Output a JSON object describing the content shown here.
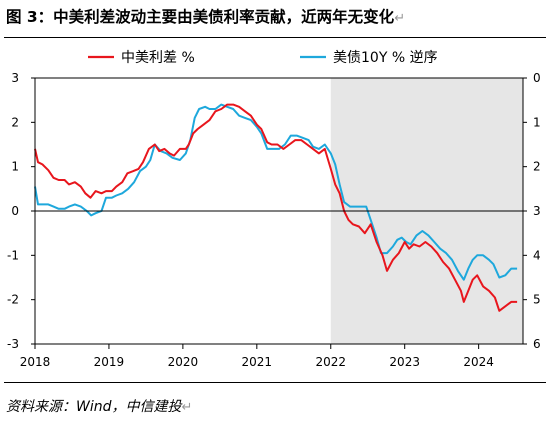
{
  "figure": {
    "title": "图 3：中美利差波动主要由美债利率贡献，近两年无变化",
    "title_end_mark": "↵",
    "source": "资料来源：Wind，中信建投",
    "source_end_mark": "↵"
  },
  "colors": {
    "spread": "#e8161d",
    "us_yield": "#1ea8dc",
    "shade": "#e6e6e6",
    "axis": "#000000"
  },
  "chart_data": {
    "type": "line",
    "legend_position": "top",
    "grid": false,
    "shaded_region": {
      "from": 2022.0,
      "to": 2024.6
    },
    "x_axis": {
      "range": [
        2018.0,
        2024.6
      ],
      "ticks": [
        2018,
        2019,
        2020,
        2021,
        2022,
        2023,
        2024
      ],
      "tick_labels": [
        "2018",
        "2019",
        "2020",
        "2021",
        "2022",
        "2023",
        "2024"
      ]
    },
    "y_left": {
      "range": [
        -3,
        3
      ],
      "ticks": [
        3,
        2,
        1,
        0,
        -1,
        -2,
        -3
      ],
      "tick_labels": [
        "3",
        "2",
        "1",
        "0",
        "-1",
        "-2",
        "-3"
      ]
    },
    "y_right": {
      "range": [
        0,
        6
      ],
      "inverted": true,
      "ticks": [
        0,
        1,
        2,
        3,
        4,
        5,
        6
      ],
      "tick_labels": [
        "0",
        "1",
        "2",
        "3",
        "4",
        "5",
        "6"
      ]
    },
    "series": [
      {
        "name": "中美利差 %",
        "axis": "left",
        "color_key": "spread",
        "points": [
          [
            2018.0,
            1.4
          ],
          [
            2018.04,
            1.1
          ],
          [
            2018.1,
            1.05
          ],
          [
            2018.18,
            0.92
          ],
          [
            2018.25,
            0.75
          ],
          [
            2018.32,
            0.7
          ],
          [
            2018.4,
            0.7
          ],
          [
            2018.46,
            0.6
          ],
          [
            2018.54,
            0.65
          ],
          [
            2018.62,
            0.55
          ],
          [
            2018.68,
            0.4
          ],
          [
            2018.75,
            0.3
          ],
          [
            2018.82,
            0.45
          ],
          [
            2018.9,
            0.4
          ],
          [
            2018.96,
            0.45
          ],
          [
            2019.04,
            0.45
          ],
          [
            2019.1,
            0.55
          ],
          [
            2019.18,
            0.65
          ],
          [
            2019.25,
            0.85
          ],
          [
            2019.33,
            0.9
          ],
          [
            2019.4,
            0.95
          ],
          [
            2019.46,
            1.1
          ],
          [
            2019.54,
            1.4
          ],
          [
            2019.62,
            1.5
          ],
          [
            2019.68,
            1.35
          ],
          [
            2019.75,
            1.4
          ],
          [
            2019.82,
            1.3
          ],
          [
            2019.88,
            1.25
          ],
          [
            2019.96,
            1.4
          ],
          [
            2020.04,
            1.4
          ],
          [
            2020.08,
            1.5
          ],
          [
            2020.14,
            1.75
          ],
          [
            2020.2,
            1.85
          ],
          [
            2020.28,
            1.95
          ],
          [
            2020.36,
            2.05
          ],
          [
            2020.44,
            2.25
          ],
          [
            2020.52,
            2.3
          ],
          [
            2020.6,
            2.4
          ],
          [
            2020.68,
            2.4
          ],
          [
            2020.76,
            2.35
          ],
          [
            2020.84,
            2.25
          ],
          [
            2020.92,
            2.15
          ],
          [
            2021.0,
            1.95
          ],
          [
            2021.06,
            1.85
          ],
          [
            2021.14,
            1.55
          ],
          [
            2021.2,
            1.5
          ],
          [
            2021.28,
            1.5
          ],
          [
            2021.36,
            1.4
          ],
          [
            2021.44,
            1.5
          ],
          [
            2021.52,
            1.6
          ],
          [
            2021.6,
            1.6
          ],
          [
            2021.68,
            1.5
          ],
          [
            2021.76,
            1.4
          ],
          [
            2021.84,
            1.3
          ],
          [
            2021.92,
            1.4
          ],
          [
            2022.0,
            0.95
          ],
          [
            2022.06,
            0.6
          ],
          [
            2022.12,
            0.4
          ],
          [
            2022.18,
            0.0
          ],
          [
            2022.24,
            -0.2
          ],
          [
            2022.3,
            -0.3
          ],
          [
            2022.38,
            -0.35
          ],
          [
            2022.46,
            -0.5
          ],
          [
            2022.54,
            -0.3
          ],
          [
            2022.62,
            -0.7
          ],
          [
            2022.7,
            -1.0
          ],
          [
            2022.76,
            -1.35
          ],
          [
            2022.84,
            -1.1
          ],
          [
            2022.92,
            -0.95
          ],
          [
            2023.0,
            -0.7
          ],
          [
            2023.06,
            -0.85
          ],
          [
            2023.12,
            -0.75
          ],
          [
            2023.2,
            -0.8
          ],
          [
            2023.28,
            -0.7
          ],
          [
            2023.36,
            -0.8
          ],
          [
            2023.44,
            -0.95
          ],
          [
            2023.52,
            -1.15
          ],
          [
            2023.6,
            -1.3
          ],
          [
            2023.68,
            -1.55
          ],
          [
            2023.76,
            -1.8
          ],
          [
            2023.8,
            -2.05
          ],
          [
            2023.86,
            -1.8
          ],
          [
            2023.92,
            -1.55
          ],
          [
            2023.98,
            -1.45
          ],
          [
            2024.06,
            -1.7
          ],
          [
            2024.14,
            -1.8
          ],
          [
            2024.22,
            -1.95
          ],
          [
            2024.28,
            -2.25
          ],
          [
            2024.36,
            -2.15
          ],
          [
            2024.44,
            -2.05
          ],
          [
            2024.52,
            -2.05
          ]
        ]
      },
      {
        "name": "美债10Y % 逆序",
        "axis": "right",
        "color_key": "us_yield",
        "points": [
          [
            2018.0,
            2.45
          ],
          [
            2018.04,
            2.85
          ],
          [
            2018.1,
            2.85
          ],
          [
            2018.18,
            2.85
          ],
          [
            2018.25,
            2.9
          ],
          [
            2018.32,
            2.95
          ],
          [
            2018.4,
            2.95
          ],
          [
            2018.46,
            2.9
          ],
          [
            2018.54,
            2.85
          ],
          [
            2018.62,
            2.9
          ],
          [
            2018.7,
            3.0
          ],
          [
            2018.76,
            3.1
          ],
          [
            2018.82,
            3.05
          ],
          [
            2018.9,
            3.0
          ],
          [
            2018.96,
            2.7
          ],
          [
            2019.04,
            2.7
          ],
          [
            2019.1,
            2.65
          ],
          [
            2019.18,
            2.6
          ],
          [
            2019.26,
            2.5
          ],
          [
            2019.34,
            2.35
          ],
          [
            2019.42,
            2.1
          ],
          [
            2019.5,
            2.0
          ],
          [
            2019.56,
            1.85
          ],
          [
            2019.62,
            1.5
          ],
          [
            2019.7,
            1.65
          ],
          [
            2019.78,
            1.7
          ],
          [
            2019.86,
            1.8
          ],
          [
            2019.96,
            1.85
          ],
          [
            2020.04,
            1.7
          ],
          [
            2020.1,
            1.4
          ],
          [
            2020.16,
            0.9
          ],
          [
            2020.22,
            0.7
          ],
          [
            2020.3,
            0.65
          ],
          [
            2020.36,
            0.7
          ],
          [
            2020.44,
            0.7
          ],
          [
            2020.52,
            0.6
          ],
          [
            2020.6,
            0.65
          ],
          [
            2020.68,
            0.7
          ],
          [
            2020.76,
            0.85
          ],
          [
            2020.84,
            0.9
          ],
          [
            2020.92,
            0.95
          ],
          [
            2021.0,
            1.1
          ],
          [
            2021.06,
            1.25
          ],
          [
            2021.14,
            1.6
          ],
          [
            2021.22,
            1.6
          ],
          [
            2021.3,
            1.6
          ],
          [
            2021.38,
            1.5
          ],
          [
            2021.46,
            1.3
          ],
          [
            2021.54,
            1.3
          ],
          [
            2021.62,
            1.35
          ],
          [
            2021.7,
            1.4
          ],
          [
            2021.76,
            1.55
          ],
          [
            2021.84,
            1.6
          ],
          [
            2021.92,
            1.5
          ],
          [
            2022.0,
            1.7
          ],
          [
            2022.06,
            1.95
          ],
          [
            2022.12,
            2.4
          ],
          [
            2022.18,
            2.8
          ],
          [
            2022.26,
            2.9
          ],
          [
            2022.34,
            2.9
          ],
          [
            2022.42,
            2.9
          ],
          [
            2022.48,
            2.9
          ],
          [
            2022.54,
            3.2
          ],
          [
            2022.62,
            3.6
          ],
          [
            2022.68,
            3.95
          ],
          [
            2022.76,
            3.95
          ],
          [
            2022.84,
            3.8
          ],
          [
            2022.9,
            3.65
          ],
          [
            2022.96,
            3.6
          ],
          [
            2023.02,
            3.7
          ],
          [
            2023.08,
            3.75
          ],
          [
            2023.16,
            3.55
          ],
          [
            2023.24,
            3.45
          ],
          [
            2023.32,
            3.55
          ],
          [
            2023.4,
            3.7
          ],
          [
            2023.48,
            3.85
          ],
          [
            2023.56,
            3.95
          ],
          [
            2023.64,
            4.1
          ],
          [
            2023.72,
            4.35
          ],
          [
            2023.8,
            4.55
          ],
          [
            2023.86,
            4.3
          ],
          [
            2023.92,
            4.1
          ],
          [
            2023.98,
            4.0
          ],
          [
            2024.06,
            4.0
          ],
          [
            2024.14,
            4.1
          ],
          [
            2024.2,
            4.2
          ],
          [
            2024.28,
            4.5
          ],
          [
            2024.36,
            4.45
          ],
          [
            2024.44,
            4.3
          ],
          [
            2024.52,
            4.3
          ]
        ]
      }
    ]
  }
}
